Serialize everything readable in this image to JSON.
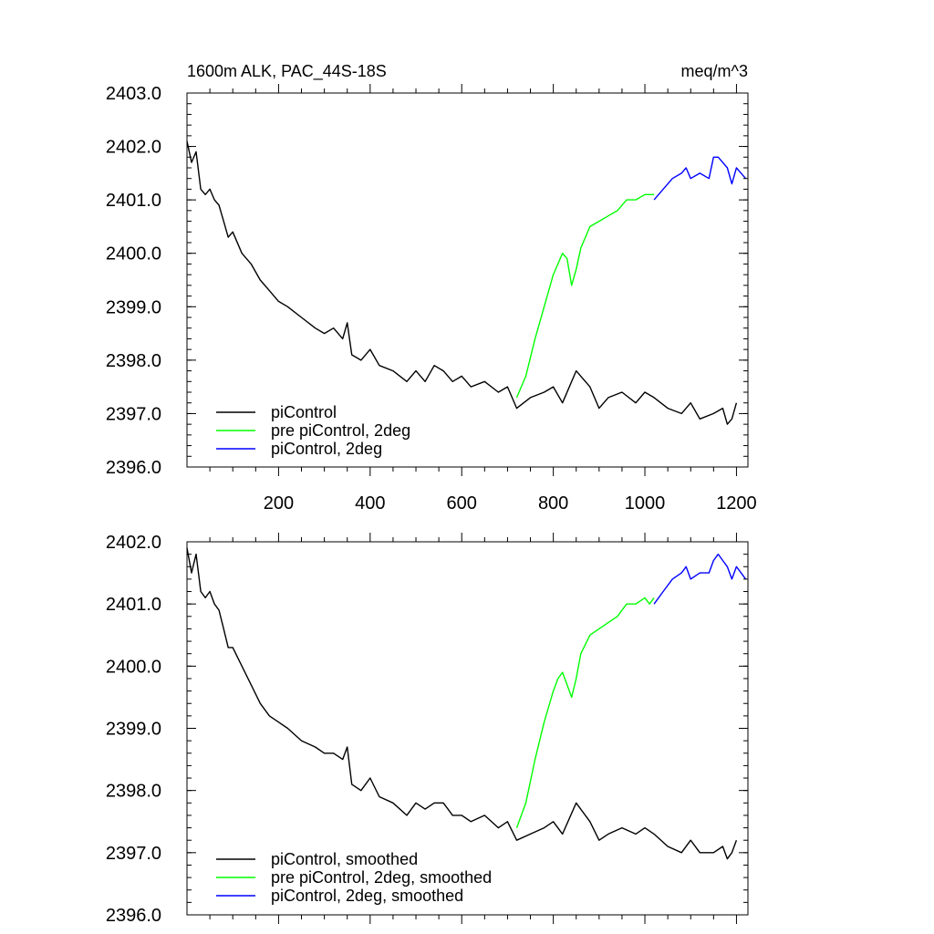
{
  "chart_data": [
    {
      "type": "line",
      "title": "1600m ALK, PAC_44S-18S",
      "units": "meq/m^3",
      "xlim": [
        0,
        1225
      ],
      "ylim": [
        2396.0,
        2403.0
      ],
      "x_ticks": [
        200,
        400,
        600,
        800,
        1000,
        1200
      ],
      "x_tick_labels": [
        "200",
        "400",
        "600",
        "800",
        "1000",
        "1200"
      ],
      "y_ticks": [
        2396.0,
        2397.0,
        2398.0,
        2399.0,
        2400.0,
        2401.0,
        2402.0,
        2403.0
      ],
      "y_tick_labels": [
        "2396.0",
        "2397.0",
        "2398.0",
        "2399.0",
        "2400.0",
        "2401.0",
        "2402.0",
        "2403.0"
      ],
      "grid": false,
      "legend_position": "bottom-left",
      "series": [
        {
          "name": "piControl",
          "color": "#000000",
          "x": [
            0,
            10,
            20,
            30,
            40,
            50,
            60,
            70,
            80,
            90,
            100,
            120,
            140,
            160,
            180,
            200,
            220,
            250,
            280,
            300,
            320,
            340,
            350,
            360,
            380,
            400,
            420,
            450,
            480,
            500,
            520,
            540,
            560,
            580,
            600,
            620,
            650,
            680,
            700,
            720,
            750,
            780,
            800,
            820,
            850,
            880,
            900,
            920,
            950,
            980,
            1000,
            1020,
            1050,
            1080,
            1100,
            1120,
            1150,
            1170,
            1180,
            1190,
            1200
          ],
          "y": [
            2402.1,
            2401.7,
            2401.9,
            2401.2,
            2401.1,
            2401.2,
            2401.0,
            2400.9,
            2400.6,
            2400.3,
            2400.4,
            2400.0,
            2399.8,
            2399.5,
            2399.3,
            2399.1,
            2399.0,
            2398.8,
            2398.6,
            2398.5,
            2398.6,
            2398.4,
            2398.7,
            2398.1,
            2398.0,
            2398.2,
            2397.9,
            2397.8,
            2397.6,
            2397.8,
            2397.6,
            2397.9,
            2397.8,
            2397.6,
            2397.7,
            2397.5,
            2397.6,
            2397.4,
            2397.5,
            2397.1,
            2397.3,
            2397.4,
            2397.5,
            2397.2,
            2397.8,
            2397.5,
            2397.1,
            2397.3,
            2397.4,
            2397.2,
            2397.4,
            2397.3,
            2397.1,
            2397.0,
            2397.2,
            2396.9,
            2397.0,
            2397.1,
            2396.8,
            2396.9,
            2397.2
          ]
        },
        {
          "name": "pre piControl, 2deg",
          "color": "#00ff00",
          "x": [
            720,
            740,
            760,
            780,
            800,
            810,
            820,
            830,
            840,
            850,
            860,
            880,
            900,
            920,
            940,
            960,
            980,
            1000,
            1010,
            1020
          ],
          "y": [
            2397.3,
            2397.7,
            2398.4,
            2399.0,
            2399.6,
            2399.8,
            2400.0,
            2399.9,
            2399.4,
            2399.7,
            2400.1,
            2400.5,
            2400.6,
            2400.7,
            2400.8,
            2401.0,
            2401.0,
            2401.1,
            2401.1,
            2401.1
          ]
        },
        {
          "name": "piControl, 2deg",
          "color": "#0000ff",
          "x": [
            1020,
            1040,
            1060,
            1080,
            1090,
            1100,
            1120,
            1140,
            1150,
            1160,
            1170,
            1180,
            1190,
            1200,
            1210,
            1220
          ],
          "y": [
            2401.0,
            2401.2,
            2401.4,
            2401.5,
            2401.6,
            2401.4,
            2401.5,
            2401.4,
            2401.8,
            2401.8,
            2401.7,
            2401.6,
            2401.3,
            2401.6,
            2401.5,
            2401.4
          ]
        }
      ]
    },
    {
      "type": "line",
      "xlim": [
        0,
        1225
      ],
      "ylim": [
        2396.0,
        2402.0
      ],
      "x_ticks": [
        200,
        400,
        600,
        800,
        1000,
        1200
      ],
      "y_ticks": [
        2396.0,
        2397.0,
        2398.0,
        2399.0,
        2400.0,
        2401.0,
        2402.0
      ],
      "y_tick_labels": [
        "2396.0",
        "2397.0",
        "2398.0",
        "2399.0",
        "2400.0",
        "2401.0",
        "2402.0"
      ],
      "grid": false,
      "legend_position": "bottom-left",
      "series": [
        {
          "name": "piControl, smoothed",
          "color": "#000000",
          "x": [
            0,
            10,
            20,
            30,
            40,
            50,
            60,
            70,
            80,
            90,
            100,
            120,
            140,
            160,
            180,
            200,
            220,
            250,
            280,
            300,
            320,
            340,
            350,
            360,
            380,
            400,
            420,
            450,
            480,
            500,
            520,
            540,
            560,
            580,
            600,
            620,
            650,
            680,
            700,
            720,
            750,
            780,
            800,
            820,
            850,
            880,
            900,
            920,
            950,
            980,
            1000,
            1020,
            1050,
            1080,
            1100,
            1120,
            1150,
            1170,
            1180,
            1190,
            1200
          ],
          "y": [
            2401.9,
            2401.5,
            2401.8,
            2401.2,
            2401.1,
            2401.2,
            2401.0,
            2400.9,
            2400.6,
            2400.3,
            2400.3,
            2400.0,
            2399.7,
            2399.4,
            2399.2,
            2399.1,
            2399.0,
            2398.8,
            2398.7,
            2398.6,
            2398.6,
            2398.5,
            2398.7,
            2398.1,
            2398.0,
            2398.2,
            2397.9,
            2397.8,
            2397.6,
            2397.8,
            2397.7,
            2397.8,
            2397.8,
            2397.6,
            2397.6,
            2397.5,
            2397.6,
            2397.4,
            2397.5,
            2397.2,
            2397.3,
            2397.4,
            2397.5,
            2397.3,
            2397.8,
            2397.5,
            2397.2,
            2397.3,
            2397.4,
            2397.3,
            2397.4,
            2397.3,
            2397.1,
            2397.0,
            2397.2,
            2397.0,
            2397.0,
            2397.1,
            2396.9,
            2397.0,
            2397.2
          ]
        },
        {
          "name": "pre piControl, 2deg, smoothed",
          "color": "#00ff00",
          "x": [
            720,
            740,
            760,
            780,
            800,
            810,
            820,
            830,
            840,
            850,
            860,
            880,
            900,
            920,
            940,
            960,
            980,
            1000,
            1010,
            1020
          ],
          "y": [
            2397.4,
            2397.8,
            2398.5,
            2399.1,
            2399.6,
            2399.8,
            2399.9,
            2399.7,
            2399.5,
            2399.8,
            2400.2,
            2400.5,
            2400.6,
            2400.7,
            2400.8,
            2401.0,
            2401.0,
            2401.1,
            2401.0,
            2401.1
          ]
        },
        {
          "name": "piControl, 2deg, smoothed",
          "color": "#0000ff",
          "x": [
            1020,
            1040,
            1060,
            1080,
            1090,
            1100,
            1120,
            1140,
            1150,
            1160,
            1170,
            1180,
            1190,
            1200,
            1210,
            1220
          ],
          "y": [
            2401.0,
            2401.2,
            2401.4,
            2401.5,
            2401.6,
            2401.4,
            2401.5,
            2401.5,
            2401.7,
            2401.8,
            2401.7,
            2401.6,
            2401.4,
            2401.6,
            2401.5,
            2401.4
          ]
        }
      ]
    }
  ]
}
